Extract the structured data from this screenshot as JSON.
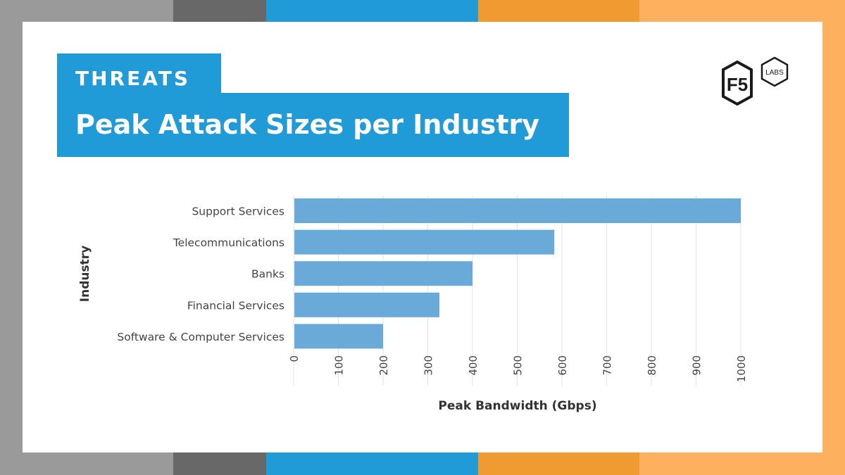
{
  "frame": {
    "colors": [
      "#9a9a9a",
      "#686868",
      "#219bd7",
      "#f09b32",
      "#fdb15e"
    ]
  },
  "header": {
    "kicker": "THREATS",
    "title": "Peak Attack Sizes per Industry"
  },
  "logo": {
    "brand": "F5",
    "sub": "LABS"
  },
  "chart_data": {
    "type": "bar",
    "orientation": "horizontal",
    "title": "Peak Attack Sizes per Industry",
    "categories": [
      "Support Services",
      "Telecommunications",
      "Banks",
      "Financial Services",
      "Software & Computer Services"
    ],
    "values": [
      1000,
      583,
      400,
      326,
      200
    ],
    "xlabel": "Peak Bandwidth (Gbps)",
    "ylabel": "Industry",
    "xlim": [
      0,
      1000
    ],
    "xticks": [
      "0",
      "100",
      "200",
      "300",
      "400",
      "500",
      "600",
      "700",
      "800",
      "900",
      "1000"
    ],
    "grid": true,
    "bar_color": "#6aaad9"
  }
}
